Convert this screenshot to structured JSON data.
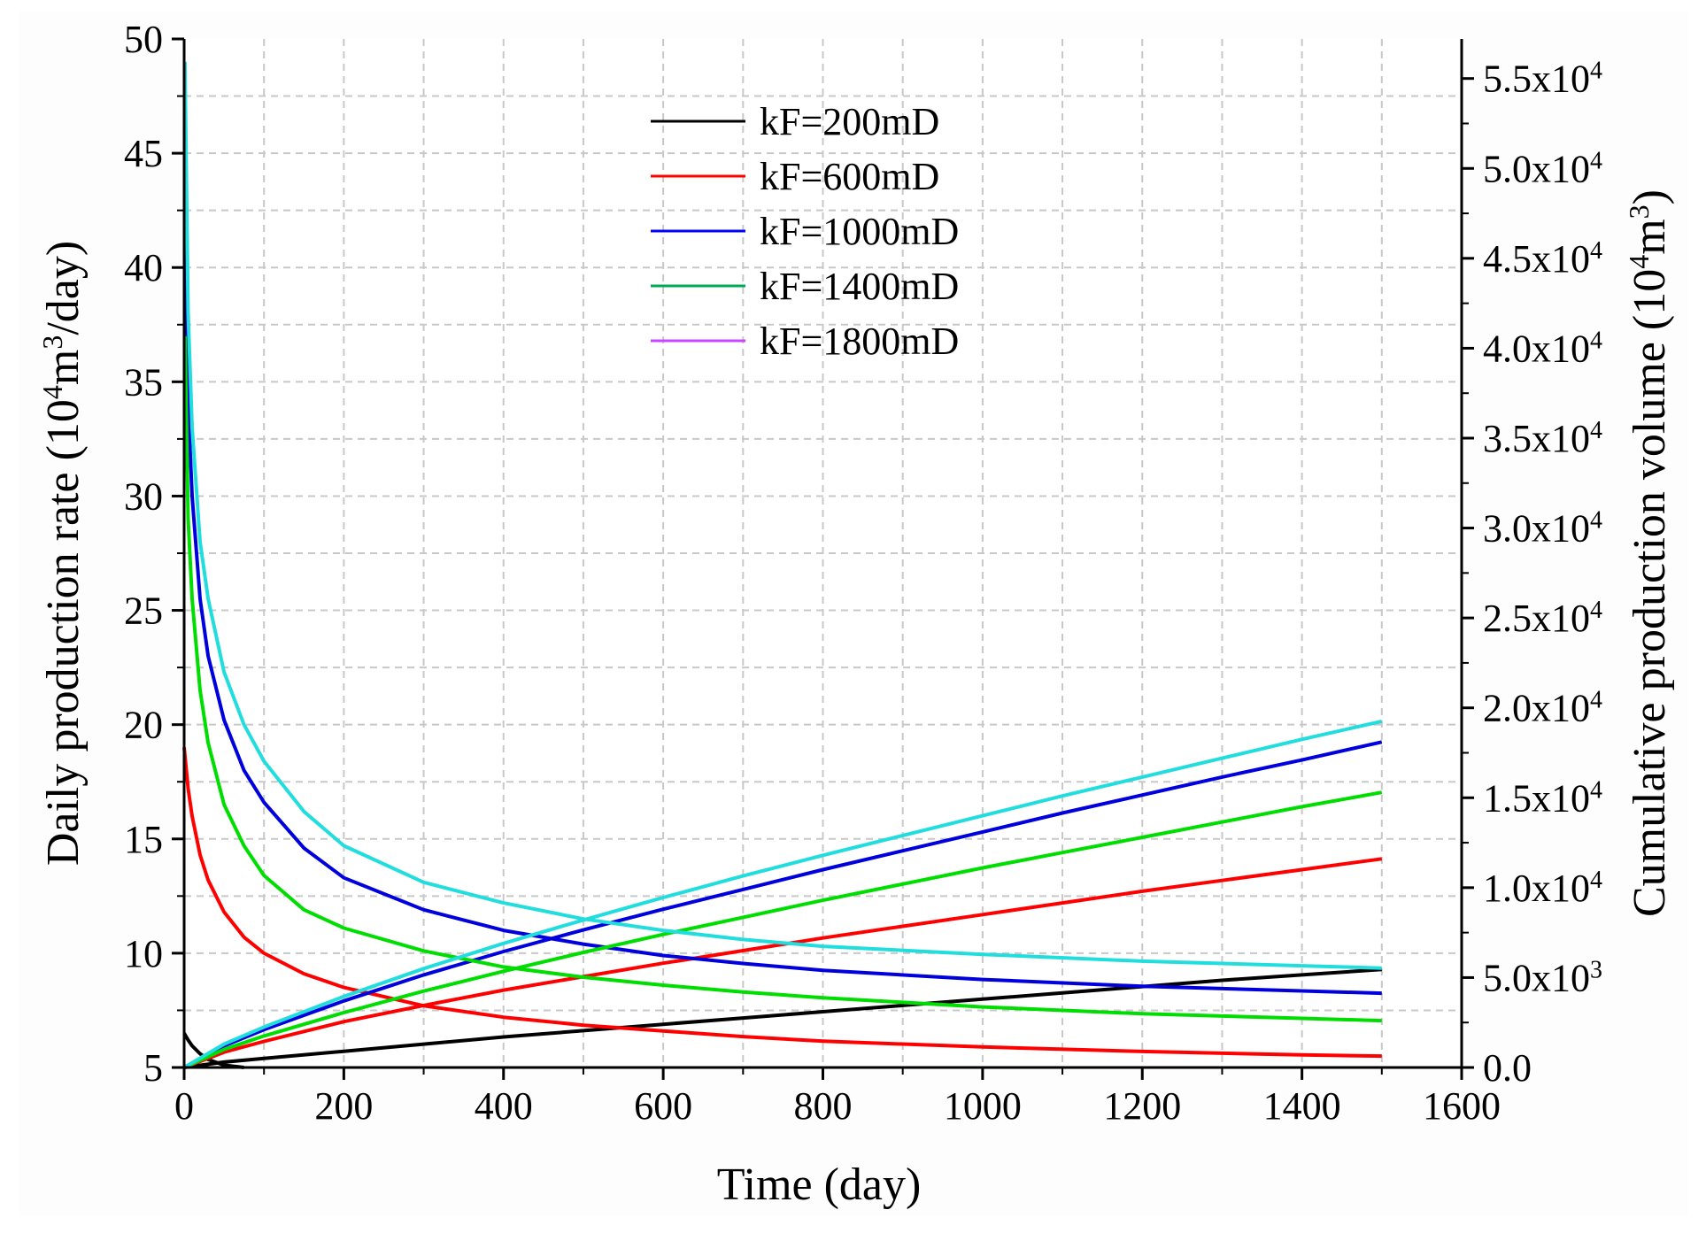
{
  "chart_data": {
    "type": "line",
    "title": "",
    "xlabel": "Time (day)",
    "ylabel_left": {
      "prefix": "Daily production rate (10",
      "sup": "4",
      "mid": "m",
      "sup2": "3",
      "suffix": "/day)"
    },
    "ylabel_right": {
      "prefix": "Cumulative production volume (10",
      "sup": "4",
      "mid": "m",
      "sup2": "3",
      "suffix": ")"
    },
    "xlim": [
      0,
      1600
    ],
    "ylim_left": [
      5,
      50
    ],
    "ylim_right": [
      0,
      57200
    ],
    "x_ticks": [
      "0",
      "200",
      "400",
      "600",
      "800",
      "1000",
      "1200",
      "1400",
      "1600"
    ],
    "x_tick_values": [
      0,
      200,
      400,
      600,
      800,
      1000,
      1200,
      1400,
      1600
    ],
    "y_left_ticks": [
      "5",
      "10",
      "15",
      "20",
      "25",
      "30",
      "35",
      "40",
      "45",
      "50"
    ],
    "y_left_tick_values": [
      5,
      10,
      15,
      20,
      25,
      30,
      35,
      40,
      45,
      50
    ],
    "y_right_ticks": [
      {
        "value": 0,
        "base": "0.0",
        "exp": ""
      },
      {
        "value": 5000,
        "base": "5.0x10",
        "exp": "3"
      },
      {
        "value": 10000,
        "base": "1.0x10",
        "exp": "4"
      },
      {
        "value": 15000,
        "base": "1.5x10",
        "exp": "4"
      },
      {
        "value": 20000,
        "base": "2.0x10",
        "exp": "4"
      },
      {
        "value": 25000,
        "base": "2.5x10",
        "exp": "4"
      },
      {
        "value": 30000,
        "base": "3.0x10",
        "exp": "4"
      },
      {
        "value": 35000,
        "base": "3.5x10",
        "exp": "4"
      },
      {
        "value": 40000,
        "base": "4.0x10",
        "exp": "4"
      },
      {
        "value": 45000,
        "base": "4.5x10",
        "exp": "4"
      },
      {
        "value": 50000,
        "base": "5.0x10",
        "exp": "4"
      },
      {
        "value": 55000,
        "base": "5.5x10",
        "exp": "4"
      }
    ],
    "grid": true,
    "legend_position": "top-center",
    "series": [
      {
        "name": "kF=200mD",
        "color": "#000000",
        "legend_color": "#000000",
        "rate": {
          "x": [
            0,
            5,
            10,
            20,
            30,
            50,
            75
          ],
          "y": [
            6.5,
            6.2,
            5.95,
            5.6,
            5.35,
            5.1,
            5.0
          ]
        },
        "cumulative": {
          "x": [
            0,
            50,
            100,
            200,
            300,
            400,
            500,
            600,
            700,
            800,
            900,
            1000,
            1100,
            1200,
            1300,
            1400,
            1500
          ],
          "y": [
            0,
            300,
            500,
            900,
            1300,
            1700,
            2050,
            2400,
            2750,
            3100,
            3450,
            3800,
            4150,
            4500,
            4850,
            5150,
            5450
          ]
        }
      },
      {
        "name": "kF=600mD",
        "color": "#ff0000",
        "legend_color": "#ff0000",
        "rate": {
          "x": [
            0,
            5,
            10,
            20,
            30,
            50,
            75,
            100,
            150,
            200,
            300,
            400,
            500,
            600,
            700,
            800,
            1000,
            1200,
            1400,
            1500
          ],
          "y": [
            19,
            17.2,
            16.0,
            14.3,
            13.2,
            11.8,
            10.7,
            10.0,
            9.1,
            8.5,
            7.7,
            7.2,
            6.85,
            6.6,
            6.35,
            6.15,
            5.9,
            5.7,
            5.55,
            5.5
          ]
        },
        "cumulative": {
          "x": [
            0,
            50,
            100,
            200,
            300,
            400,
            500,
            600,
            700,
            800,
            900,
            1000,
            1100,
            1200,
            1300,
            1400,
            1500
          ],
          "y": [
            0,
            850,
            1450,
            2550,
            3450,
            4300,
            5050,
            5800,
            6500,
            7200,
            7850,
            8500,
            9150,
            9800,
            10400,
            11000,
            11600
          ]
        }
      },
      {
        "name": "kF=1000mD",
        "color": "#0000dd",
        "legend_color": "#0000ff",
        "rate": {
          "x": [
            1,
            5,
            10,
            20,
            30,
            50,
            75,
            100,
            150,
            200,
            300,
            400,
            500,
            600,
            700,
            800,
            1000,
            1200,
            1400,
            1500
          ],
          "y": [
            43,
            34,
            30,
            25.5,
            23,
            20.2,
            18.0,
            16.6,
            14.6,
            13.3,
            11.9,
            11.0,
            10.4,
            9.9,
            9.55,
            9.25,
            8.85,
            8.55,
            8.35,
            8.25
          ]
        },
        "cumulative": {
          "x": [
            0,
            50,
            100,
            200,
            300,
            400,
            500,
            600,
            700,
            800,
            900,
            1000,
            1100,
            1200,
            1300,
            1400,
            1500
          ],
          "y": [
            0,
            1200,
            2100,
            3700,
            5150,
            6450,
            7650,
            8800,
            9900,
            11000,
            12050,
            13100,
            14150,
            15150,
            16150,
            17100,
            18100
          ]
        }
      },
      {
        "name": "kF=1400mD",
        "color": "#00dd00",
        "legend_color": "#00aa55",
        "rate": {
          "x": [
            1,
            5,
            10,
            20,
            30,
            50,
            75,
            100,
            150,
            200,
            300,
            400,
            500,
            600,
            700,
            800,
            1000,
            1200,
            1400,
            1500
          ],
          "y": [
            37,
            29,
            25.5,
            21.5,
            19.2,
            16.5,
            14.7,
            13.4,
            11.9,
            11.1,
            10.1,
            9.4,
            8.95,
            8.6,
            8.3,
            8.05,
            7.65,
            7.35,
            7.15,
            7.05
          ]
        },
        "cumulative": {
          "x": [
            0,
            50,
            100,
            200,
            300,
            400,
            500,
            600,
            700,
            800,
            900,
            1000,
            1100,
            1200,
            1300,
            1400,
            1500
          ],
          "y": [
            0,
            1000,
            1750,
            3050,
            4250,
            5350,
            6400,
            7400,
            8350,
            9300,
            10200,
            11100,
            11950,
            12800,
            13650,
            14500,
            15300
          ]
        }
      },
      {
        "name": "kF=1800mD",
        "color": "#22dddd",
        "legend_color": "#cc44ff",
        "rate": {
          "x": [
            1,
            5,
            10,
            20,
            30,
            50,
            75,
            100,
            150,
            200,
            300,
            400,
            500,
            600,
            700,
            800,
            1000,
            1200,
            1400,
            1500
          ],
          "y": [
            49,
            38,
            33,
            28,
            25.5,
            22.3,
            20.0,
            18.4,
            16.2,
            14.7,
            13.1,
            12.2,
            11.5,
            11.0,
            10.6,
            10.3,
            9.95,
            9.65,
            9.45,
            9.35
          ]
        },
        "cumulative": {
          "x": [
            0,
            50,
            100,
            200,
            300,
            400,
            500,
            600,
            700,
            800,
            900,
            1000,
            1100,
            1200,
            1300,
            1400,
            1500
          ],
          "y": [
            0,
            1300,
            2250,
            3950,
            5500,
            6900,
            8200,
            9450,
            10650,
            11800,
            12900,
            14000,
            15100,
            16150,
            17200,
            18250,
            19250
          ]
        }
      }
    ]
  }
}
